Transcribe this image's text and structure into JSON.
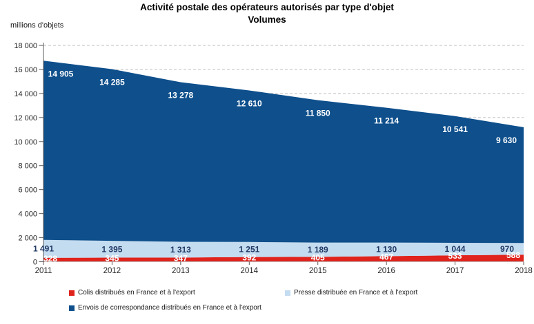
{
  "title": {
    "line1": "Activité postale des opérateurs autorisés par type d'objet",
    "line2": "Volumes"
  },
  "y_axis_unit": "millions d'objets",
  "colors": {
    "axis": "#595959",
    "grid": "#BFBFBF",
    "tick_text": "#262626",
    "title_text": "#000000"
  },
  "chart_data": {
    "type": "area",
    "stacked": true,
    "title": "Activité postale des opérateurs autorisés par type d'objet",
    "subtitle": "Volumes",
    "ylabel": "millions d'objets",
    "xlabel": "",
    "grid": "horizontal-dashed",
    "legend_position": "bottom",
    "categories": [
      "2011",
      "2012",
      "2013",
      "2014",
      "2015",
      "2016",
      "2017",
      "2018"
    ],
    "ylim": [
      0,
      18000
    ],
    "ytick_step": 2000,
    "ytick_labels": [
      "0",
      "2 000",
      "4 000",
      "6 000",
      "8 000",
      "10 000",
      "12 000",
      "14 000",
      "16 000",
      "18 000"
    ],
    "series": [
      {
        "name": "Colis distribués en France et à l'export",
        "color": "#E0231C",
        "label_color": "#FFFFFF",
        "values": [
          328,
          345,
          347,
          392,
          405,
          467,
          533,
          588
        ],
        "labels": [
          "328",
          "345",
          "347",
          "392",
          "405",
          "467",
          "533",
          "588"
        ]
      },
      {
        "name": "Presse distribuée en France et à l'export",
        "color": "#C4DCF0",
        "label_color": "#1F3864",
        "values": [
          1491,
          1395,
          1313,
          1251,
          1189,
          1130,
          1044,
          970
        ],
        "labels": [
          "1 491",
          "1 395",
          "1 313",
          "1 251",
          "1 189",
          "1 130",
          "1 044",
          "970"
        ]
      },
      {
        "name": "Envois de correspondance distribués en France et à l'export",
        "color": "#0E4F8C",
        "label_color": "#FFFFFF",
        "values": [
          14905,
          14285,
          13278,
          12610,
          11850,
          11214,
          10541,
          9630
        ],
        "labels": [
          "14 905",
          "14 285",
          "13 278",
          "12 610",
          "11 850",
          "11 214",
          "10 541",
          "9 630"
        ]
      }
    ]
  }
}
